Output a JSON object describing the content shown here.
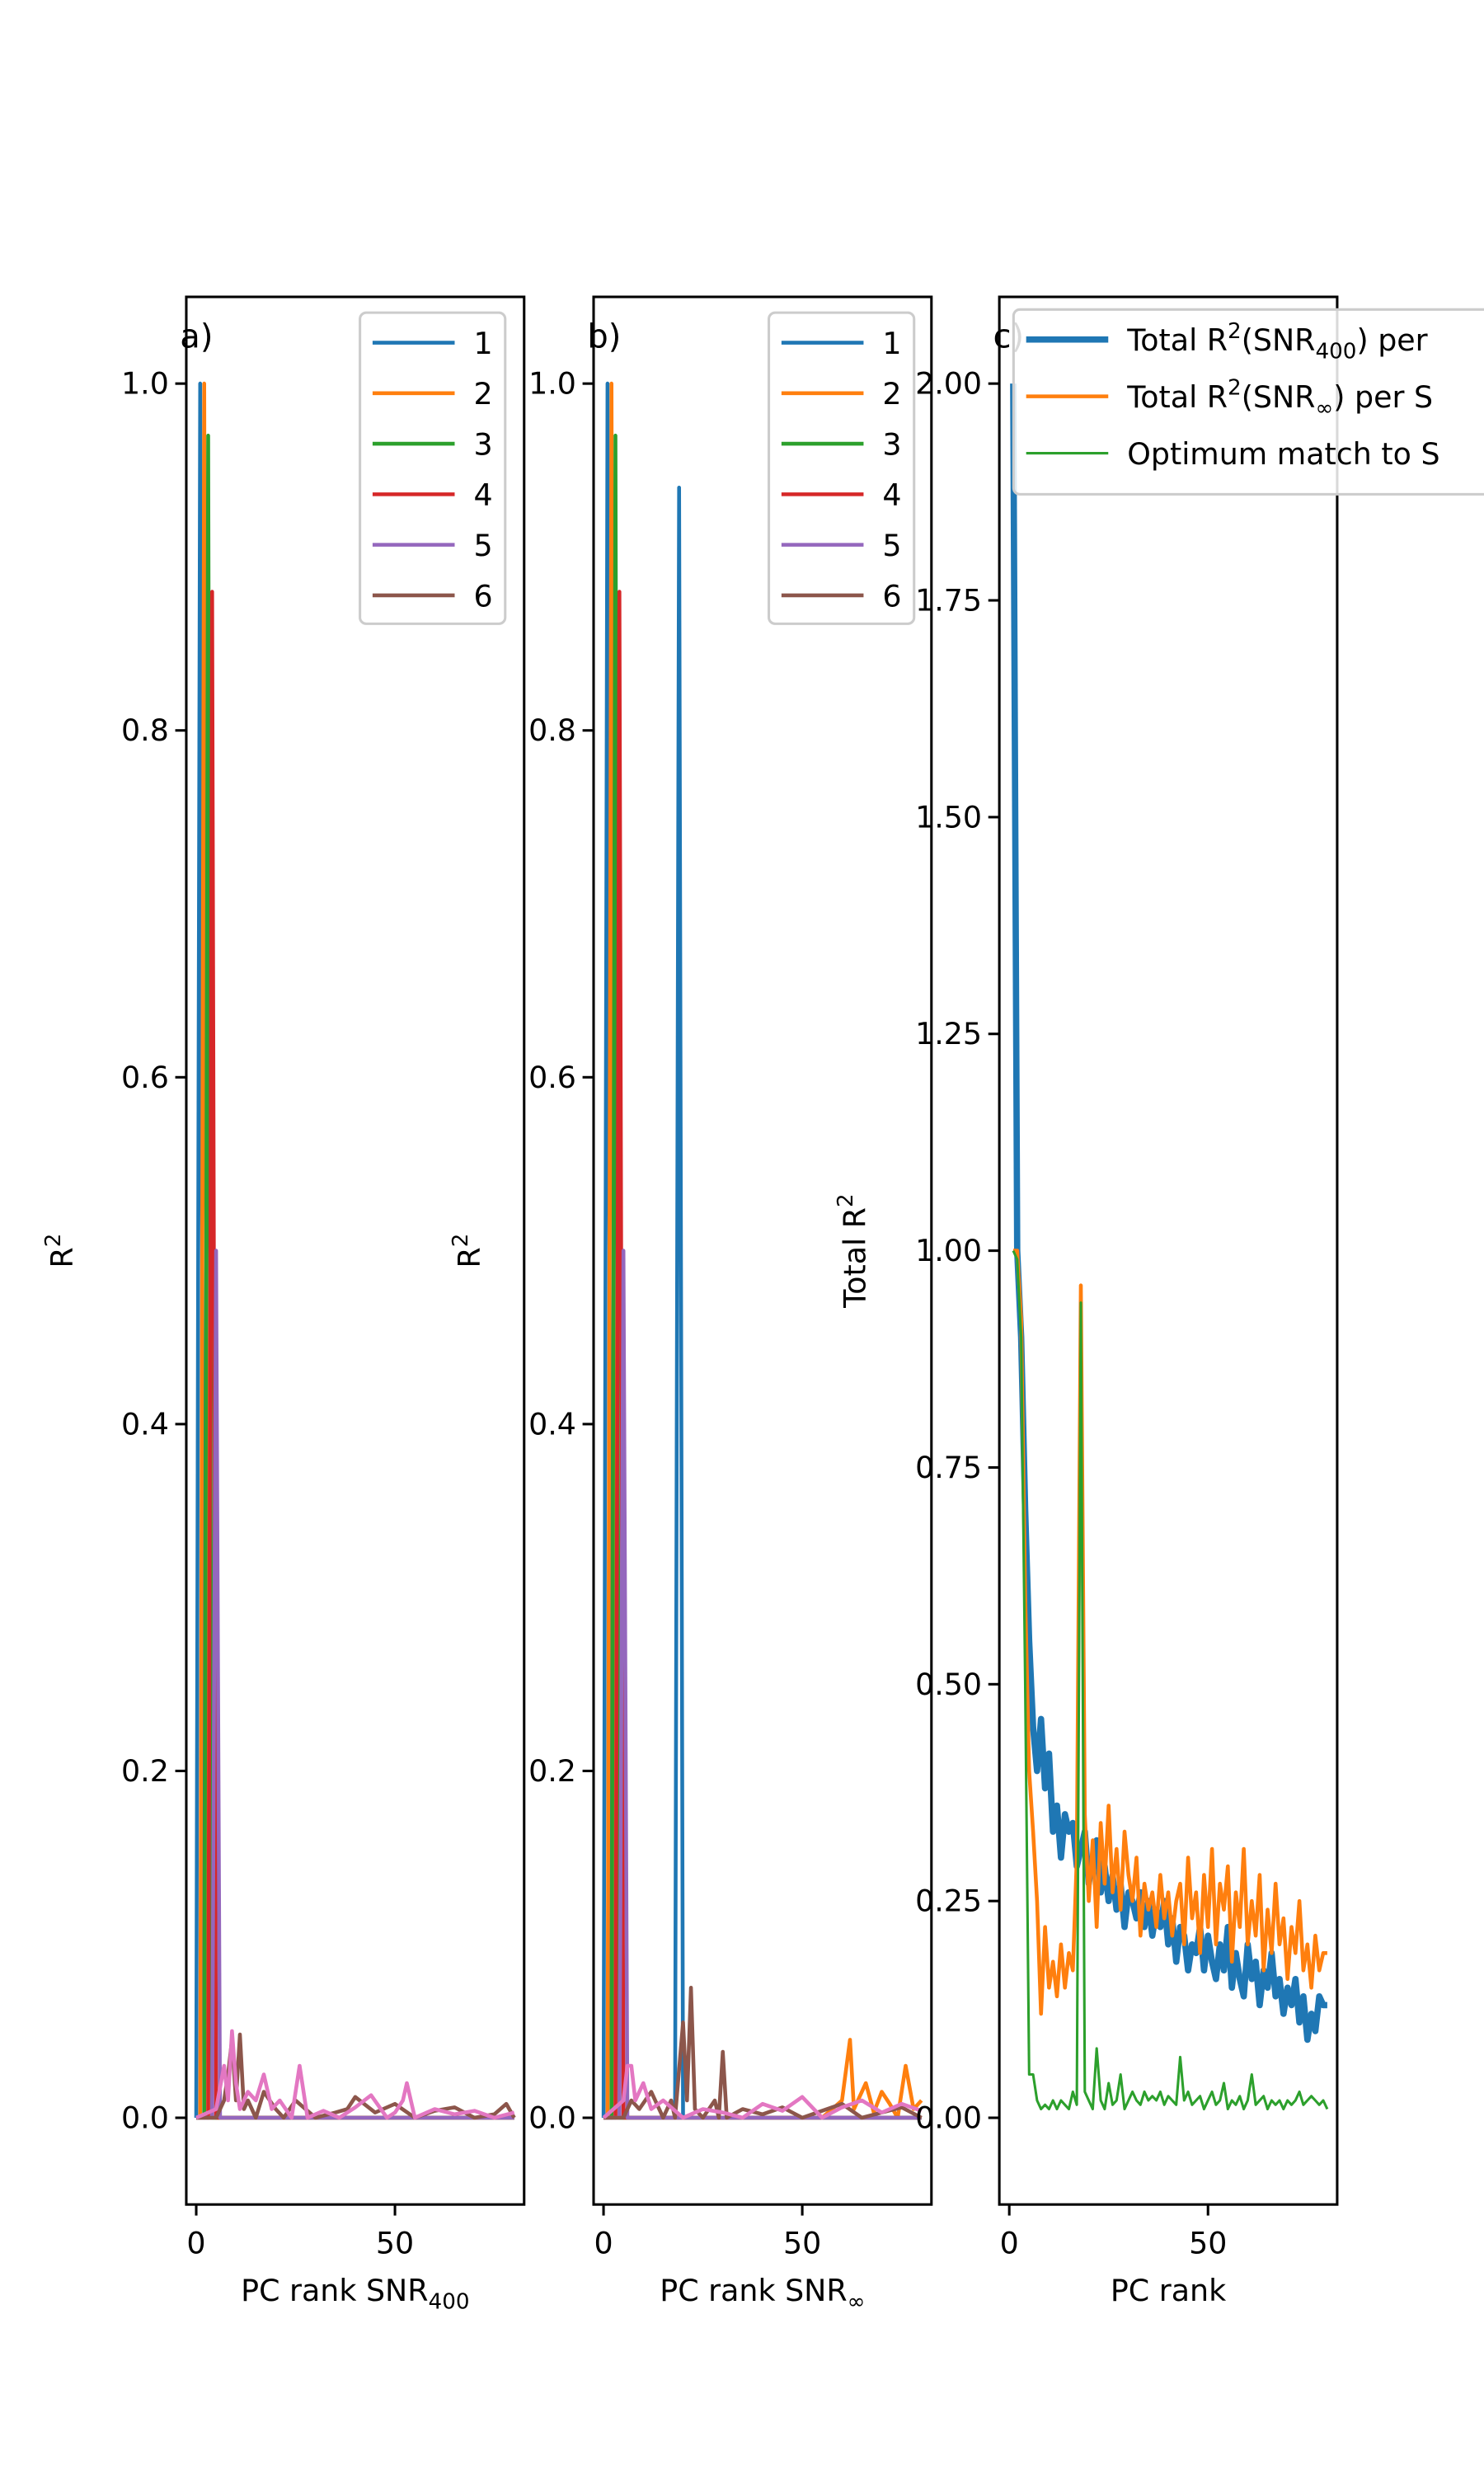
{
  "colors": {
    "c1": "#1f77b4",
    "c2": "#ff7f0e",
    "c3": "#2ca02c",
    "c4": "#d62728",
    "c5": "#9467bd",
    "c6": "#8c564b",
    "c7": "#e377c2"
  },
  "chart_data": [
    {
      "type": "line",
      "panel_label": "a)",
      "xlabel": "PC rank SNR",
      "xlabel_sub": "400",
      "ylabel": "R",
      "ylabel_sup": "2",
      "xlim": [
        -2.5,
        82.5
      ],
      "ylim": [
        -0.05,
        1.05
      ],
      "xticks": [
        "0",
        "50"
      ],
      "xtick_values": [
        0,
        50
      ],
      "yticks": [
        "0.0",
        "0.2",
        "0.4",
        "0.6",
        "0.8",
        "1.0"
      ],
      "ytick_values": [
        0.0,
        0.2,
        0.4,
        0.6,
        0.8,
        1.0
      ],
      "legend": [
        "1",
        "2",
        "3",
        "4",
        "5",
        "6"
      ],
      "legend_location": "upper right",
      "series": [
        {
          "name": "1",
          "color": "#1f77b4",
          "x": [
            0,
            1,
            2,
            3,
            80
          ],
          "y": [
            0.0,
            1.0,
            0.0,
            0.0,
            0.0
          ]
        },
        {
          "name": "2",
          "color": "#ff7f0e",
          "x": [
            0,
            1,
            2,
            3,
            80
          ],
          "y": [
            0.0,
            0.0,
            1.0,
            0.0,
            0.0
          ]
        },
        {
          "name": "3",
          "color": "#2ca02c",
          "x": [
            0,
            2,
            3,
            4,
            80
          ],
          "y": [
            0.0,
            0.0,
            0.97,
            0.0,
            0.0
          ]
        },
        {
          "name": "4",
          "color": "#d62728",
          "x": [
            0,
            3,
            4,
            5,
            80
          ],
          "y": [
            0.0,
            0.0,
            0.88,
            0.0,
            0.0
          ]
        },
        {
          "name": "5",
          "color": "#9467bd",
          "x": [
            0,
            4,
            5,
            6,
            80
          ],
          "y": [
            0.0,
            0.0,
            0.5,
            0.0,
            0.0
          ]
        },
        {
          "name": "6",
          "color": "#8c564b",
          "x": [
            0,
            5,
            7,
            8,
            9,
            10,
            11,
            12,
            13,
            15,
            17,
            20,
            22,
            25,
            30,
            35,
            38,
            40,
            45,
            50,
            55,
            60,
            65,
            70,
            75,
            78,
            80
          ],
          "y": [
            0.0,
            0.0,
            0.01,
            0.025,
            0.045,
            0.01,
            0.048,
            0.005,
            0.01,
            0.0,
            0.015,
            0.005,
            0.0,
            0.01,
            0.0,
            0.003,
            0.005,
            0.012,
            0.003,
            0.008,
            0.0,
            0.004,
            0.006,
            0.0,
            0.002,
            0.008,
            0.0
          ]
        },
        {
          "name": "",
          "color": "#e377c2",
          "x": [
            0,
            5,
            7,
            8,
            9,
            10,
            11,
            13,
            15,
            17,
            19,
            21,
            24,
            26,
            28,
            32,
            36,
            40,
            44,
            48,
            50,
            52,
            53,
            55,
            60,
            65,
            70,
            75,
            80
          ],
          "y": [
            0.0,
            0.005,
            0.03,
            0.01,
            0.05,
            0.02,
            0.005,
            0.015,
            0.01,
            0.025,
            0.005,
            0.01,
            0.0,
            0.03,
            0.0,
            0.004,
            0.0,
            0.006,
            0.013,
            0.0,
            0.003,
            0.01,
            0.02,
            0.0,
            0.005,
            0.002,
            0.004,
            0.0,
            0.003
          ]
        }
      ]
    },
    {
      "type": "line",
      "panel_label": "b)",
      "xlabel": "PC rank SNR",
      "xlabel_sub": "∞",
      "ylabel": "R",
      "ylabel_sup": "2",
      "xlim": [
        -2.5,
        82.5
      ],
      "ylim": [
        -0.05,
        1.05
      ],
      "xticks": [
        "0",
        "50"
      ],
      "xtick_values": [
        0,
        50
      ],
      "yticks": [
        "0.0",
        "0.2",
        "0.4",
        "0.6",
        "0.8",
        "1.0"
      ],
      "ytick_values": [
        0.0,
        0.2,
        0.4,
        0.6,
        0.8,
        1.0
      ],
      "legend": [
        "1",
        "2",
        "3",
        "4",
        "5",
        "6"
      ],
      "legend_location": "upper right",
      "series": [
        {
          "name": "1",
          "color": "#1f77b4",
          "x": [
            0,
            1,
            2,
            18,
            19,
            20,
            80
          ],
          "y": [
            0.0,
            1.0,
            0.0,
            0.0,
            0.94,
            0.0,
            0.0
          ]
        },
        {
          "name": "2",
          "color": "#ff7f0e",
          "x": [
            0,
            1,
            2,
            3,
            55,
            60,
            62,
            63,
            66,
            68,
            70,
            72,
            74,
            76,
            78,
            80
          ],
          "y": [
            0.0,
            0.0,
            1.0,
            0.0,
            0.0,
            0.01,
            0.045,
            0.005,
            0.02,
            0.003,
            0.015,
            0.008,
            0.0,
            0.03,
            0.005,
            0.01
          ]
        },
        {
          "name": "3",
          "color": "#2ca02c",
          "x": [
            0,
            2,
            3,
            4,
            80
          ],
          "y": [
            0.0,
            0.0,
            0.97,
            0.0,
            0.0
          ]
        },
        {
          "name": "4",
          "color": "#d62728",
          "x": [
            0,
            3,
            4,
            5,
            80
          ],
          "y": [
            0.0,
            0.0,
            0.88,
            0.0,
            0.0
          ]
        },
        {
          "name": "5",
          "color": "#9467bd",
          "x": [
            0,
            4,
            5,
            6,
            80
          ],
          "y": [
            0.0,
            0.0,
            0.5,
            0.0,
            0.0
          ]
        },
        {
          "name": "6",
          "color": "#8c564b",
          "x": [
            0,
            5,
            7,
            9,
            12,
            15,
            17,
            18,
            20,
            21,
            22,
            23,
            25,
            28,
            29,
            30,
            31,
            35,
            40,
            45,
            50,
            55,
            60,
            65,
            70,
            75,
            80
          ],
          "y": [
            0.0,
            0.0,
            0.01,
            0.005,
            0.015,
            0.0,
            0.01,
            0.0,
            0.055,
            0.01,
            0.075,
            0.005,
            0.0,
            0.01,
            0.0,
            0.038,
            0.0,
            0.005,
            0.002,
            0.006,
            0.0,
            0.004,
            0.008,
            0.0,
            0.003,
            0.006,
            0.0
          ]
        },
        {
          "name": "",
          "color": "#e377c2",
          "x": [
            0,
            5,
            6,
            7,
            8,
            10,
            12,
            15,
            20,
            25,
            30,
            35,
            40,
            45,
            50,
            55,
            60,
            65,
            70,
            75,
            80
          ],
          "y": [
            0.0,
            0.01,
            0.03,
            0.03,
            0.01,
            0.02,
            0.005,
            0.01,
            0.0,
            0.005,
            0.003,
            0.0,
            0.008,
            0.004,
            0.012,
            0.0,
            0.006,
            0.01,
            0.003,
            0.008,
            0.004
          ]
        }
      ]
    },
    {
      "type": "line",
      "panel_label": "c)",
      "xlabel": "PC rank",
      "ylabel": "Total R",
      "ylabel_sup": "2",
      "xlim": [
        -2.5,
        82.5
      ],
      "ylim": [
        -0.1,
        2.1
      ],
      "xticks": [
        "0",
        "50"
      ],
      "xtick_values": [
        0,
        50
      ],
      "yticks": [
        "0.00",
        "0.25",
        "0.50",
        "0.75",
        "1.00",
        "1.25",
        "1.50",
        "1.75",
        "2.00"
      ],
      "ytick_values": [
        0.0,
        0.25,
        0.5,
        0.75,
        1.0,
        1.25,
        1.5,
        1.75,
        2.0
      ],
      "legend_location": "upper right",
      "series": [
        {
          "name": "Total R²(SNR₄₀₀) per",
          "legend_main": "Total R",
          "legend_sup": "2",
          "legend_mid": "(SNR",
          "legend_sub": "400",
          "legend_tail": ") per",
          "color": "#1f77b4",
          "linewidth": "thick",
          "x": [
            1,
            2,
            3,
            4,
            5,
            6,
            7,
            8,
            9,
            10,
            11,
            12,
            13,
            14,
            15,
            16,
            17,
            18,
            19,
            20,
            21,
            22,
            23,
            24,
            25,
            26,
            27,
            28,
            29,
            30,
            31,
            32,
            33,
            34,
            35,
            36,
            37,
            38,
            39,
            40,
            41,
            42,
            43,
            44,
            45,
            46,
            47,
            48,
            49,
            50,
            51,
            52,
            53,
            54,
            55,
            56,
            57,
            58,
            59,
            60,
            61,
            62,
            63,
            64,
            65,
            66,
            67,
            68,
            69,
            70,
            71,
            72,
            73,
            74,
            75,
            76,
            77,
            78,
            79,
            80
          ],
          "y": [
            2.0,
            1.0,
            0.9,
            0.7,
            0.55,
            0.45,
            0.4,
            0.46,
            0.38,
            0.42,
            0.33,
            0.36,
            0.3,
            0.35,
            0.33,
            0.34,
            0.29,
            0.31,
            0.33,
            0.27,
            0.3,
            0.32,
            0.26,
            0.29,
            0.25,
            0.28,
            0.24,
            0.27,
            0.22,
            0.26,
            0.25,
            0.23,
            0.26,
            0.22,
            0.25,
            0.21,
            0.24,
            0.22,
            0.25,
            0.2,
            0.23,
            0.18,
            0.22,
            0.21,
            0.17,
            0.2,
            0.19,
            0.22,
            0.17,
            0.21,
            0.18,
            0.16,
            0.2,
            0.17,
            0.22,
            0.15,
            0.19,
            0.16,
            0.14,
            0.2,
            0.16,
            0.18,
            0.13,
            0.17,
            0.15,
            0.19,
            0.14,
            0.16,
            0.12,
            0.15,
            0.13,
            0.16,
            0.11,
            0.14,
            0.09,
            0.12,
            0.1,
            0.14,
            0.13,
            0.13
          ]
        },
        {
          "name": "Total R²(SNR∞) per S",
          "legend_main": "Total R",
          "legend_sup": "2",
          "legend_mid": "(SNR",
          "legend_sub": "∞",
          "legend_tail": ") per S",
          "color": "#ff7f0e",
          "linewidth": "normal",
          "x": [
            1,
            2,
            3,
            4,
            5,
            6,
            7,
            8,
            9,
            10,
            11,
            12,
            13,
            14,
            15,
            16,
            17,
            18,
            19,
            20,
            21,
            22,
            23,
            24,
            25,
            26,
            27,
            28,
            29,
            30,
            31,
            32,
            33,
            34,
            35,
            36,
            37,
            38,
            39,
            40,
            41,
            42,
            43,
            44,
            45,
            46,
            47,
            48,
            49,
            50,
            51,
            52,
            53,
            54,
            55,
            56,
            57,
            58,
            59,
            60,
            61,
            62,
            63,
            64,
            65,
            66,
            67,
            68,
            69,
            70,
            71,
            72,
            73,
            74,
            75,
            76,
            77,
            78,
            79,
            80
          ],
          "y": [
            1.0,
            1.0,
            0.92,
            0.6,
            0.4,
            0.33,
            0.25,
            0.12,
            0.22,
            0.15,
            0.18,
            0.14,
            0.2,
            0.15,
            0.19,
            0.17,
            0.3,
            0.96,
            0.35,
            0.25,
            0.32,
            0.22,
            0.34,
            0.27,
            0.36,
            0.26,
            0.31,
            0.24,
            0.33,
            0.28,
            0.25,
            0.3,
            0.21,
            0.27,
            0.24,
            0.26,
            0.22,
            0.28,
            0.23,
            0.26,
            0.21,
            0.25,
            0.27,
            0.2,
            0.3,
            0.23,
            0.26,
            0.19,
            0.28,
            0.22,
            0.31,
            0.2,
            0.27,
            0.24,
            0.29,
            0.18,
            0.26,
            0.22,
            0.31,
            0.2,
            0.25,
            0.21,
            0.28,
            0.17,
            0.24,
            0.19,
            0.27,
            0.2,
            0.23,
            0.16,
            0.22,
            0.19,
            0.25,
            0.17,
            0.2,
            0.15,
            0.21,
            0.17,
            0.19,
            0.19
          ]
        },
        {
          "name": "Optimum match to S",
          "legend_main": "Optimum match to S",
          "color": "#2ca02c",
          "linewidth": "thin",
          "x": [
            1,
            2,
            3,
            4,
            5,
            6,
            7,
            8,
            9,
            10,
            11,
            12,
            13,
            14,
            15,
            16,
            17,
            18,
            19,
            20,
            21,
            22,
            23,
            24,
            25,
            26,
            27,
            28,
            29,
            30,
            31,
            32,
            33,
            34,
            35,
            36,
            37,
            38,
            39,
            40,
            41,
            42,
            43,
            44,
            45,
            46,
            47,
            48,
            49,
            50,
            51,
            52,
            53,
            54,
            55,
            56,
            57,
            58,
            59,
            60,
            61,
            62,
            63,
            64,
            65,
            66,
            67,
            68,
            69,
            70,
            71,
            72,
            73,
            74,
            75,
            76,
            77,
            78,
            79,
            80
          ],
          "y": [
            1.0,
            0.99,
            0.9,
            0.5,
            0.05,
            0.05,
            0.02,
            0.01,
            0.015,
            0.01,
            0.02,
            0.01,
            0.02,
            0.015,
            0.01,
            0.03,
            0.015,
            0.94,
            0.03,
            0.02,
            0.01,
            0.08,
            0.02,
            0.01,
            0.04,
            0.015,
            0.02,
            0.05,
            0.01,
            0.02,
            0.03,
            0.02,
            0.015,
            0.03,
            0.02,
            0.025,
            0.02,
            0.03,
            0.015,
            0.025,
            0.02,
            0.015,
            0.07,
            0.02,
            0.03,
            0.015,
            0.02,
            0.025,
            0.01,
            0.02,
            0.03,
            0.015,
            0.02,
            0.04,
            0.01,
            0.02,
            0.015,
            0.025,
            0.01,
            0.02,
            0.05,
            0.015,
            0.02,
            0.025,
            0.01,
            0.02,
            0.015,
            0.02,
            0.01,
            0.02,
            0.015,
            0.02,
            0.03,
            0.015,
            0.02,
            0.025,
            0.02,
            0.015,
            0.02,
            0.01
          ]
        }
      ]
    }
  ]
}
